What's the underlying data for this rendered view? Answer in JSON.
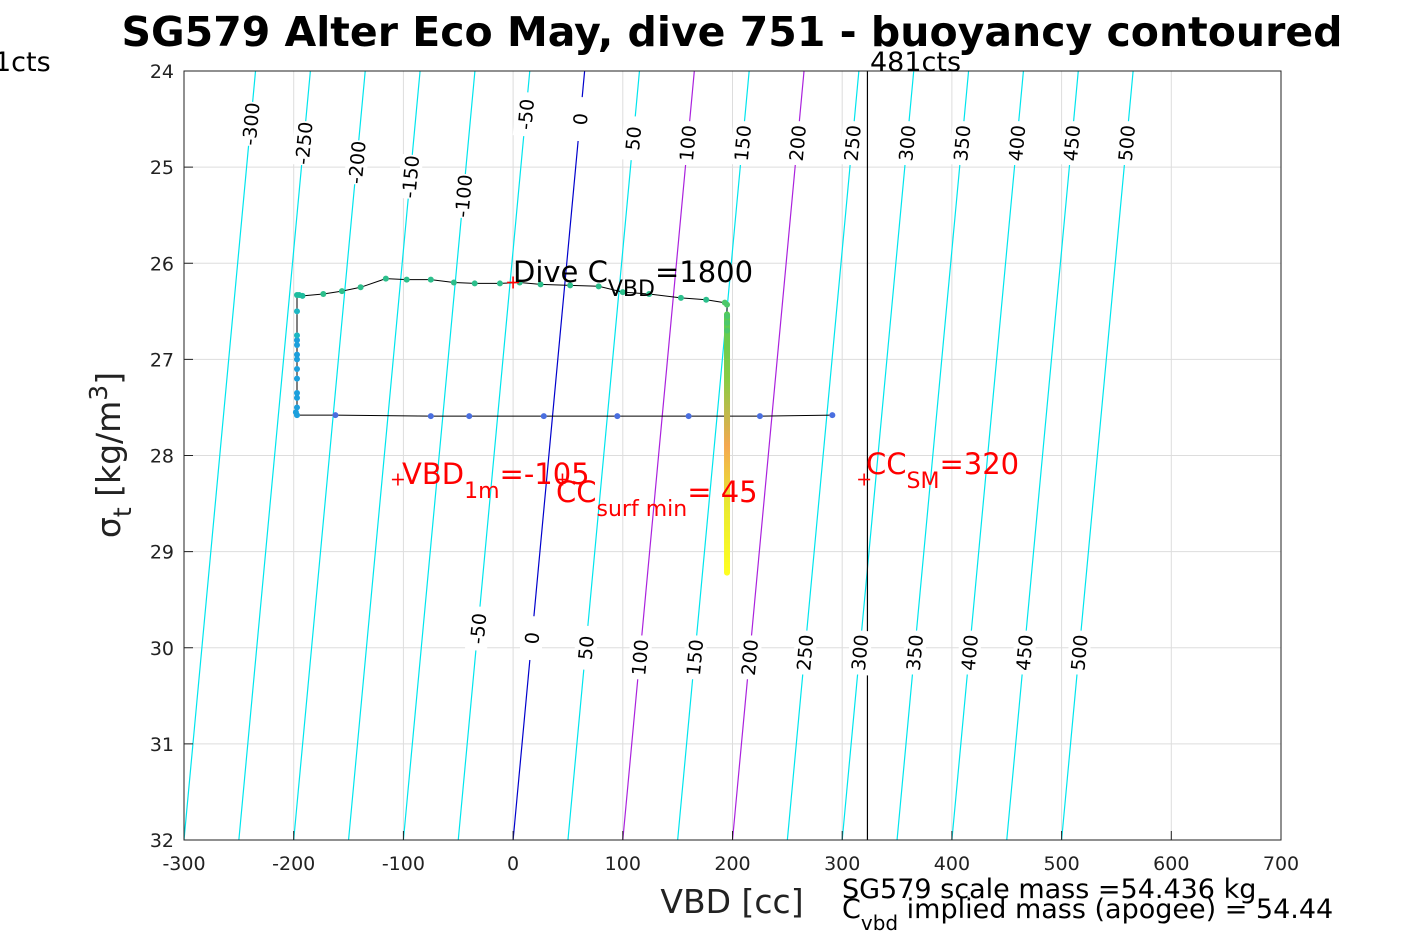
{
  "chart_data": {
    "type": "scatter",
    "title": "SG579 Alter Eco May, dive 751 - buoyancy contoured",
    "xlabel": "VBD [cc]",
    "ylabel": "σt [kg/m3]",
    "ylabel_parts": {
      "sym": "σ",
      "sub": "t",
      "text": " [kg/m",
      "sup": "3",
      "close": "]"
    },
    "xlim": [
      -300,
      700
    ],
    "ylim": [
      24,
      32
    ],
    "y_reversed": true,
    "grid": true,
    "xticks": [
      -300,
      -200,
      -100,
      0,
      100,
      200,
      300,
      400,
      500,
      600,
      700
    ],
    "yticks": [
      24,
      25,
      26,
      27,
      28,
      29,
      30,
      31,
      32
    ],
    "xtick_labels": [
      "-300",
      "-200",
      "-100",
      "0",
      "100",
      "200",
      "300",
      "400",
      "500",
      "600",
      "700"
    ],
    "ytick_labels": [
      "24",
      "25",
      "26",
      "27",
      "28",
      "29",
      "30",
      "31",
      "32"
    ],
    "colors": {
      "contour": "#00e5ee",
      "zero": "#0000cc",
      "highlight": "#aa22dd",
      "annotation": "#ff0000",
      "axis": "#222222",
      "grid": "#dddddd",
      "trace": "#000000"
    },
    "contours": {
      "slope": -0.1227,
      "levels": [
        -300,
        -250,
        -200,
        -150,
        -100,
        -50,
        0,
        50,
        100,
        150,
        200,
        250,
        300,
        350,
        400,
        450,
        500
      ],
      "zero_level": 0,
      "highlight_levels": [
        100,
        200
      ],
      "upper_labels": [
        {
          "level": -300,
          "text": "-300",
          "y": 24.55
        },
        {
          "level": -250,
          "text": "-250",
          "y": 24.75
        },
        {
          "level": -200,
          "text": "-200",
          "y": 24.95
        },
        {
          "level": -150,
          "text": "-150",
          "y": 25.1
        },
        {
          "level": -100,
          "text": "-100",
          "y": 25.3
        },
        {
          "level": -50,
          "text": "-50",
          "y": 24.45
        },
        {
          "level": 0,
          "text": "0",
          "y": 24.5
        },
        {
          "level": 50,
          "text": "50",
          "y": 24.7
        },
        {
          "level": 100,
          "text": "100",
          "y": 24.75
        },
        {
          "level": 150,
          "text": "150",
          "y": 24.75
        },
        {
          "level": 200,
          "text": "200",
          "y": 24.75
        },
        {
          "level": 250,
          "text": "250",
          "y": 24.75
        },
        {
          "level": 300,
          "text": "300",
          "y": 24.75
        },
        {
          "level": 350,
          "text": "350",
          "y": 24.75
        },
        {
          "level": 400,
          "text": "400",
          "y": 24.75
        },
        {
          "level": 450,
          "text": "450",
          "y": 24.75
        },
        {
          "level": 500,
          "text": "500",
          "y": 24.75
        }
      ],
      "lower_labels": [
        {
          "level": -50,
          "text": "-50",
          "y": 29.8
        },
        {
          "level": 0,
          "text": "0",
          "y": 29.9
        },
        {
          "level": 50,
          "text": "50",
          "y": 30.0
        },
        {
          "level": 100,
          "text": "100",
          "y": 30.1
        },
        {
          "level": 150,
          "text": "150",
          "y": 30.1
        },
        {
          "level": 200,
          "text": "200",
          "y": 30.1
        },
        {
          "level": 250,
          "text": "250",
          "y": 30.05
        },
        {
          "level": 300,
          "text": "300",
          "y": 30.05
        },
        {
          "level": 350,
          "text": "350",
          "y": 30.05
        },
        {
          "level": 400,
          "text": "400",
          "y": 30.05
        },
        {
          "level": 450,
          "text": "450",
          "y": 30.05
        },
        {
          "level": 500,
          "text": "500",
          "y": 30.05
        }
      ]
    },
    "dive_trace": {
      "points": [
        [
          291,
          27.58
        ],
        [
          225,
          27.59
        ],
        [
          160,
          27.59
        ],
        [
          95,
          27.59
        ],
        [
          28,
          27.59
        ],
        [
          -40,
          27.59
        ],
        [
          -75,
          27.59
        ],
        [
          -162,
          27.58
        ],
        [
          -197,
          27.58
        ],
        [
          -198,
          27.55
        ],
        [
          -197,
          27.5
        ],
        [
          -197,
          27.4
        ],
        [
          -197,
          27.35
        ],
        [
          -197,
          27.2
        ],
        [
          -197,
          27.1
        ],
        [
          -197,
          27.0
        ],
        [
          -197,
          26.95
        ],
        [
          -197,
          26.85
        ],
        [
          -197,
          26.8
        ],
        [
          -197,
          26.75
        ],
        [
          -197,
          26.5
        ],
        [
          -197,
          26.33
        ],
        [
          -195,
          26.33
        ],
        [
          -192,
          26.34
        ],
        [
          -173,
          26.32
        ],
        [
          -156,
          26.29
        ],
        [
          -139,
          26.25
        ],
        [
          -116,
          26.16
        ],
        [
          -97,
          26.17
        ],
        [
          -75,
          26.17
        ],
        [
          -54,
          26.2
        ],
        [
          -35,
          26.21
        ],
        [
          -12,
          26.21
        ],
        [
          6,
          26.2
        ],
        [
          25,
          26.22
        ],
        [
          52,
          26.23
        ],
        [
          78,
          26.24
        ],
        [
          100,
          26.3
        ],
        [
          124,
          26.32
        ],
        [
          153,
          26.36
        ],
        [
          176,
          26.38
        ],
        [
          193,
          26.41
        ],
        [
          195,
          26.43
        ],
        [
          195,
          26.55
        ],
        [
          195,
          26.62
        ],
        [
          195,
          26.7
        ]
      ],
      "point_colors": [
        "#4a6fe0",
        "#4a6fe0",
        "#4a6fe0",
        "#4a6fe0",
        "#4a6fe0",
        "#4a6fe0",
        "#4a6fe0",
        "#4a6fe0",
        "#1c9fdc",
        "#1c9fdc",
        "#1c9fdc",
        "#1c9fdc",
        "#1c9fdc",
        "#1c9fdc",
        "#1c9fdc",
        "#1c9fdc",
        "#1c9fdc",
        "#1c9fdc",
        "#1c9fdc",
        "#1cb7c4",
        "#1cb7c4",
        "#1fbd9e",
        "#1fbd9e",
        "#1fbd9e",
        "#2cbf8c",
        "#2cbf8c",
        "#2cbf8c",
        "#2cbf8c",
        "#2cbf8c",
        "#2cbf8c",
        "#2cbf8c",
        "#2cbf8c",
        "#2cbf8c",
        "#2cbf8c",
        "#2cbf8c",
        "#2cbf8c",
        "#2cbf8c",
        "#2cbf8c",
        "#2cbf8c",
        "#2cbf8c",
        "#2cbf8c",
        "#4dc86a",
        "#4dc86a",
        "#4dc86a",
        "#4dc86a",
        "#4dc86a"
      ],
      "vertical_x": 195,
      "vertical_gradient": [
        {
          "y": 26.5,
          "color": "#55cc55"
        },
        {
          "y": 27.2,
          "color": "#88cc44"
        },
        {
          "y": 27.9,
          "color": "#f5a850"
        },
        {
          "y": 28.5,
          "color": "#e8e830"
        },
        {
          "y": 29.25,
          "color": "#ffff20"
        }
      ]
    },
    "vertical_line": {
      "x": 323,
      "label": "481cts",
      "color": "#000000"
    },
    "left_label": "1cts",
    "markers": [
      {
        "name": "dive-cvbd-marker",
        "x": 0,
        "y": 26.2
      },
      {
        "name": "vbd1m-marker",
        "x": -105,
        "y": 28.25
      },
      {
        "name": "ccsurf-marker",
        "x": 45,
        "y": 28.25
      },
      {
        "name": "ccsm-marker",
        "x": 320,
        "y": 28.25
      }
    ],
    "annotations": {
      "dive_cvbd": {
        "pre": "Dive C",
        "sub": "VBD",
        "post": "=1800"
      },
      "vbd_1m": {
        "pre": "VBD",
        "sub": "1m",
        "post": "=-105"
      },
      "cc_surf_min": {
        "pre": "CC",
        "sub": "surf min",
        "post": "= 45"
      },
      "cc_sm": {
        "pre": "CC",
        "sub": "SM",
        "post": "=320"
      }
    },
    "footer": {
      "line1": "SG579 scale mass =54.436 kg",
      "line2_pre": "C",
      "line2_sub": "vbd",
      "line2_post": " implied mass (apogee) = 54.44"
    }
  }
}
